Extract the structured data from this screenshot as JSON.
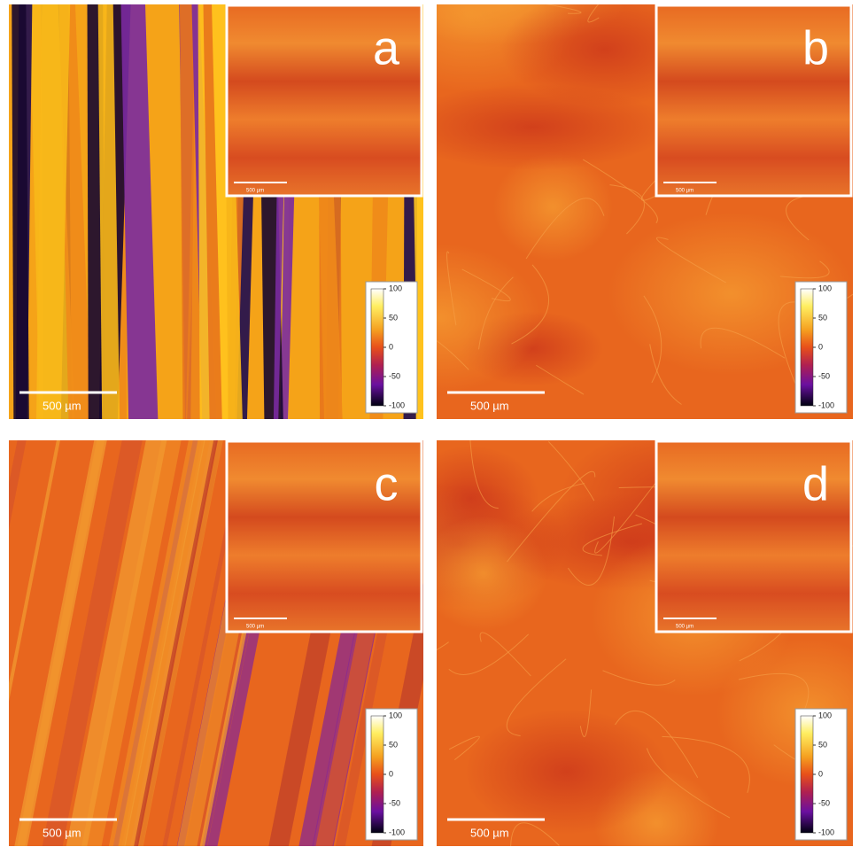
{
  "panels": [
    {
      "label": "a",
      "scale_bar": "500 µm",
      "inset_scale_bar": "500 µm",
      "colorbar_ticks": [
        100,
        50,
        0,
        -50,
        -100
      ]
    },
    {
      "label": "b",
      "scale_bar": "500 µm",
      "inset_scale_bar": "500 µm",
      "colorbar_ticks": [
        100,
        50,
        0,
        -50,
        -100
      ]
    },
    {
      "label": "c",
      "scale_bar": "500 µm",
      "inset_scale_bar": "500 µm",
      "colorbar_ticks": [
        100,
        50,
        0,
        -50,
        -100
      ]
    },
    {
      "label": "d",
      "scale_bar": "500 µm",
      "inset_scale_bar": "500 µm",
      "colorbar_ticks": [
        100,
        50,
        0,
        -50,
        -100
      ]
    }
  ]
}
